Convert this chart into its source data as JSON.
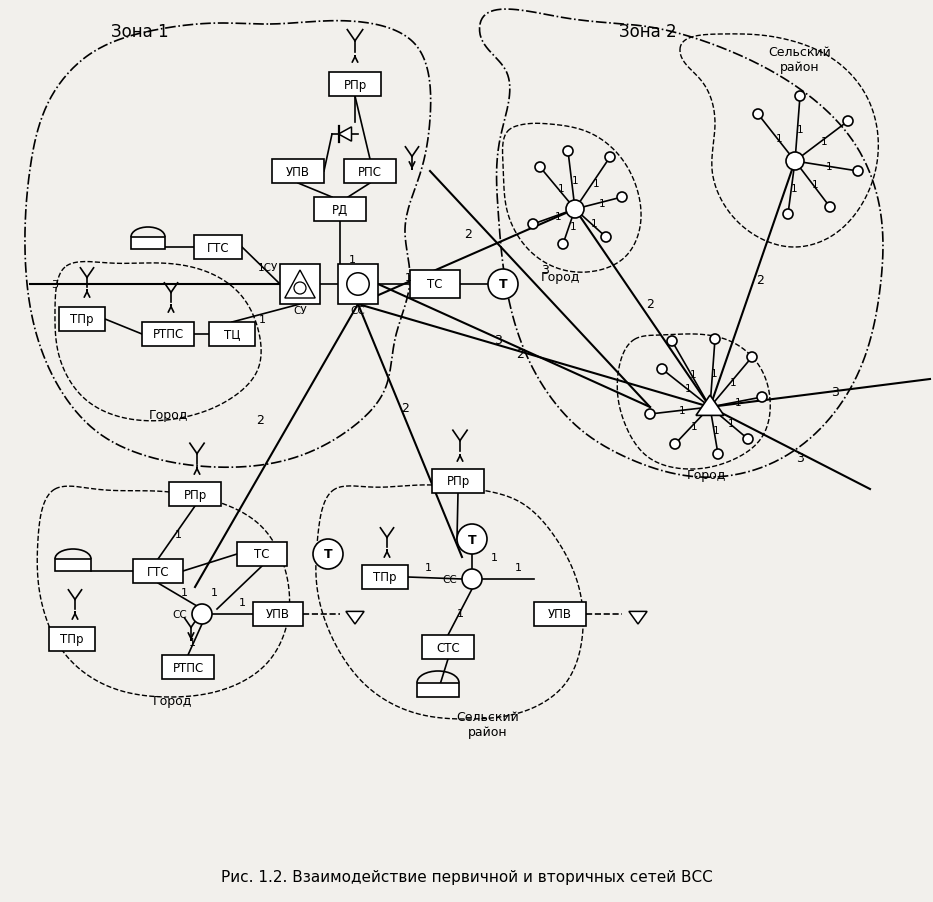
{
  "title": "Рис. 1.2. Взаимодействие первичной и вторичных сетей ВСС",
  "bg": "#f2f0ec",
  "zone1_label": "Зона 1",
  "zone2_label": "Зона 2"
}
